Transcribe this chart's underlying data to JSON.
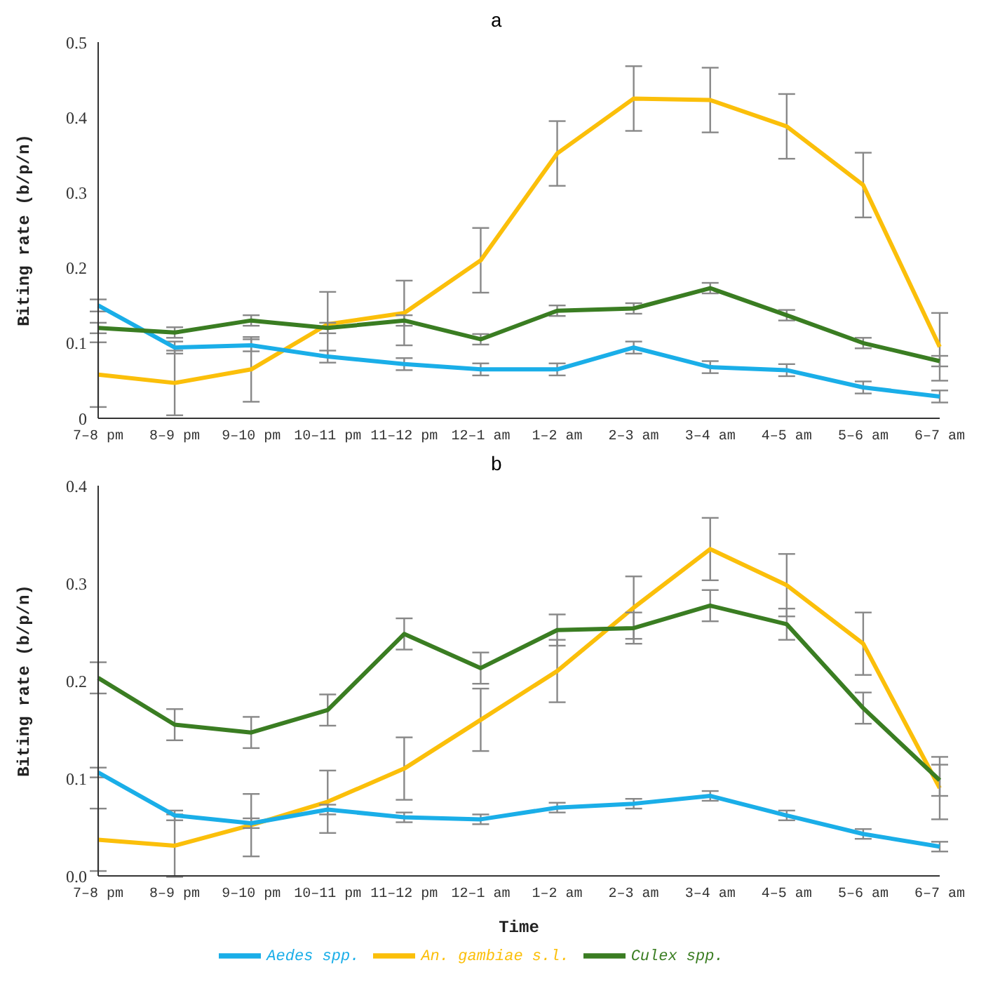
{
  "chart_data": [
    {
      "type": "line",
      "title": "a",
      "ylabel": "Biting rate (b/p/n)",
      "categories": [
        "7–8 pm",
        "8–9 pm",
        "9–10 pm",
        "10–11 pm",
        "11–12 pm",
        "12–1 am",
        "1–2 am",
        "2–3 am",
        "3–4 am",
        "4–5 am",
        "5–6 am",
        "6–7 am"
      ],
      "ylim": [
        0,
        0.5
      ],
      "yticks": [
        {
          "value": 0,
          "label": "0"
        },
        0.1,
        0.2,
        0.3,
        0.4,
        0.5
      ],
      "grid": false,
      "legend": false,
      "marker": "none",
      "line_style": "solid",
      "series": [
        {
          "color": "#fbbf0a",
          "values": [
            0.058,
            0.047,
            0.065,
            0.125,
            0.14,
            0.21,
            0.352,
            0.425,
            0.423,
            0.388,
            0.31,
            0.095
          ],
          "errors": [
            0.043,
            0.043,
            0.043,
            0.043,
            0.043,
            0.043,
            0.043,
            0.043,
            0.043,
            0.043,
            0.043,
            0.045
          ]
        },
        {
          "color": "#1aaee8",
          "values": [
            0.15,
            0.094,
            0.097,
            0.082,
            0.072,
            0.065,
            0.065,
            0.094,
            0.068,
            0.064,
            0.041,
            0.029
          ],
          "errors": [
            0.008,
            0.008,
            0.008,
            0.008,
            0.008,
            0.008,
            0.008,
            0.008,
            0.008,
            0.008,
            0.008,
            0.008
          ]
        },
        {
          "color": "#3a7d22",
          "values": [
            0.12,
            0.114,
            0.13,
            0.12,
            0.13,
            0.105,
            0.143,
            0.146,
            0.173,
            0.137,
            0.1,
            0.076
          ],
          "errors": [
            0.007,
            0.007,
            0.007,
            0.007,
            0.007,
            0.007,
            0.007,
            0.007,
            0.007,
            0.007,
            0.007,
            0.007
          ]
        }
      ]
    },
    {
      "type": "line",
      "title": "b",
      "xlabel": "Time",
      "ylabel": "Biting rate (b/p/n)",
      "categories": [
        "7–8 pm",
        "8–9 pm",
        "9–10 pm",
        "10–11 pm",
        "11–12 pm",
        "12–1 am",
        "1–2 am",
        "2–3 am",
        "3–4 am",
        "4–5 am",
        "5–6 am",
        "6–7 am"
      ],
      "ylim": [
        0,
        0.4
      ],
      "yticks": [
        {
          "value": 0,
          "label": "0.0"
        },
        0.1,
        0.2,
        0.3,
        0.4
      ],
      "grid": false,
      "legend": "bottom",
      "marker": "none",
      "line_style": "solid",
      "series": [
        {
          "name": "An. gambiae s.l.",
          "color": "#fbbf0a",
          "values": [
            0.037,
            0.031,
            0.052,
            0.076,
            0.11,
            0.16,
            0.21,
            0.275,
            0.335,
            0.298,
            0.238,
            0.09
          ],
          "errors": [
            0.032,
            0.032,
            0.032,
            0.032,
            0.032,
            0.032,
            0.032,
            0.032,
            0.032,
            0.032,
            0.032,
            0.032
          ]
        },
        {
          "name": "Aedes spp.",
          "color": "#1aaee8",
          "values": [
            0.106,
            0.062,
            0.054,
            0.068,
            0.06,
            0.058,
            0.07,
            0.074,
            0.082,
            0.062,
            0.043,
            0.03
          ],
          "errors": [
            0.005,
            0.005,
            0.005,
            0.005,
            0.005,
            0.005,
            0.005,
            0.005,
            0.005,
            0.005,
            0.005,
            0.005
          ]
        },
        {
          "name": "Culex spp.",
          "color": "#3a7d22",
          "values": [
            0.203,
            0.155,
            0.147,
            0.17,
            0.248,
            0.213,
            0.252,
            0.254,
            0.277,
            0.258,
            0.172,
            0.098
          ],
          "errors": [
            0.016,
            0.016,
            0.016,
            0.016,
            0.016,
            0.016,
            0.016,
            0.016,
            0.016,
            0.016,
            0.016,
            0.016
          ]
        }
      ]
    }
  ]
}
